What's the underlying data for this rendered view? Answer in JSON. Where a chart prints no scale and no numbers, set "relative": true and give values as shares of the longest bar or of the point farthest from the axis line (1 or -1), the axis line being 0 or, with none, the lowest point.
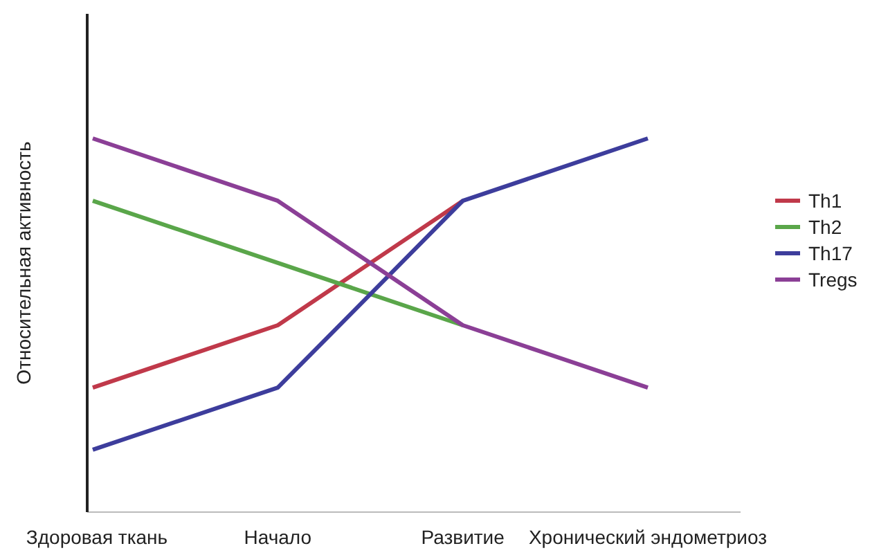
{
  "chart_data": {
    "type": "line",
    "relative": true,
    "ylabel": "Относительная активность",
    "categories": [
      "Здоровая ткань",
      "Начало",
      "Развитие",
      "Хронический эндометриоз"
    ],
    "legend": "right",
    "series": [
      {
        "name": "Th1",
        "color": "#c0394a",
        "values": [
          0.333,
          0.5,
          0.833,
          null
        ]
      },
      {
        "name": "Th2",
        "color": "#5aa64a",
        "values": [
          0.833,
          0.667,
          0.5,
          null
        ]
      },
      {
        "name": "Th17",
        "color": "#3d3d9c",
        "values": [
          0.167,
          0.333,
          0.833,
          1
        ]
      },
      {
        "name": "Tregs",
        "color": "#8b3f96",
        "values": [
          1,
          0.833,
          0.5,
          0.333
        ]
      }
    ]
  }
}
